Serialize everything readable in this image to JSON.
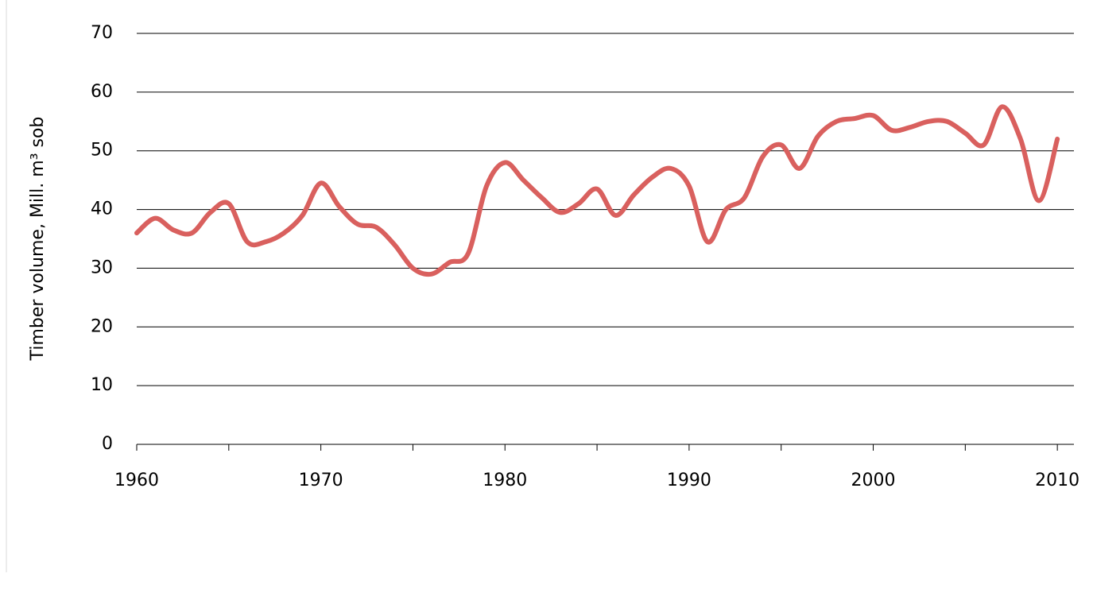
{
  "chart_data": {
    "type": "line",
    "y_label": "Timber  volume, Mill. m³ sob",
    "x": [
      1960,
      1961,
      1962,
      1963,
      1964,
      1965,
      1966,
      1967,
      1968,
      1969,
      1970,
      1971,
      1972,
      1973,
      1974,
      1975,
      1976,
      1977,
      1978,
      1979,
      1980,
      1981,
      1982,
      1983,
      1984,
      1985,
      1986,
      1987,
      1988,
      1989,
      1990,
      1991,
      1992,
      1993,
      1994,
      1995,
      1996,
      1997,
      1998,
      1999,
      2000,
      2001,
      2002,
      2003,
      2004,
      2005,
      2006,
      2007,
      2008,
      2009,
      2010
    ],
    "series": [
      {
        "color": "#d9605e",
        "values": [
          36,
          38.5,
          36.5,
          36,
          39.5,
          41,
          34.5,
          34.5,
          36,
          39,
          44.5,
          40.5,
          37.5,
          37,
          34,
          30,
          29,
          31,
          32.5,
          44,
          48,
          45,
          42,
          39.5,
          41,
          43.5,
          39,
          42.5,
          45.5,
          47,
          44,
          34.5,
          40,
          42,
          49,
          51,
          47,
          52.5,
          55,
          55.5,
          56,
          53.5,
          54,
          55,
          55,
          53,
          51,
          57.5,
          52,
          41.5,
          52
        ]
      }
    ],
    "xlim": [
      1960,
      2010.9
    ],
    "xticks": [
      1960,
      1970,
      1980,
      1990,
      2000,
      2010
    ],
    "xminorticks": [
      1965,
      1975,
      1985,
      1995,
      2005
    ],
    "ylim": [
      0,
      70
    ],
    "yticks": [
      0,
      10,
      20,
      30,
      40,
      50,
      60,
      70
    ],
    "grid": true
  }
}
